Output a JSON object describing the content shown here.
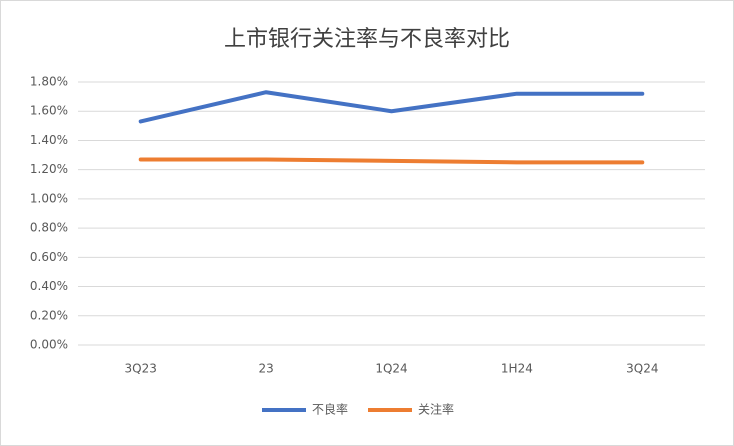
{
  "chart_data": {
    "type": "line",
    "title": "上市银行关注率与不良率对比",
    "categories": [
      "3Q23",
      "23",
      "1Q24",
      "1H24",
      "3Q24"
    ],
    "series": [
      {
        "name": "不良率",
        "color": "#4472c4",
        "values": [
          1.53,
          1.73,
          1.6,
          1.72,
          1.72
        ]
      },
      {
        "name": "关注率",
        "color": "#ed7d31",
        "values": [
          1.27,
          1.27,
          1.26,
          1.25,
          1.25
        ]
      }
    ],
    "ylim": [
      0,
      1.8
    ],
    "yticks": [
      {
        "value": 0,
        "label": "0.00%"
      },
      {
        "value": 0.2,
        "label": "0.20%"
      },
      {
        "value": 0.4,
        "label": "0.40%"
      },
      {
        "value": 0.6,
        "label": "0.60%"
      },
      {
        "value": 0.8,
        "label": "0.80%"
      },
      {
        "value": 1.0,
        "label": "1.00%"
      },
      {
        "value": 1.2,
        "label": "1.20%"
      },
      {
        "value": 1.4,
        "label": "1.40%"
      },
      {
        "value": 1.6,
        "label": "1.60%"
      },
      {
        "value": 1.8,
        "label": "1.80%"
      }
    ],
    "grid": true,
    "legend": "bottom"
  }
}
